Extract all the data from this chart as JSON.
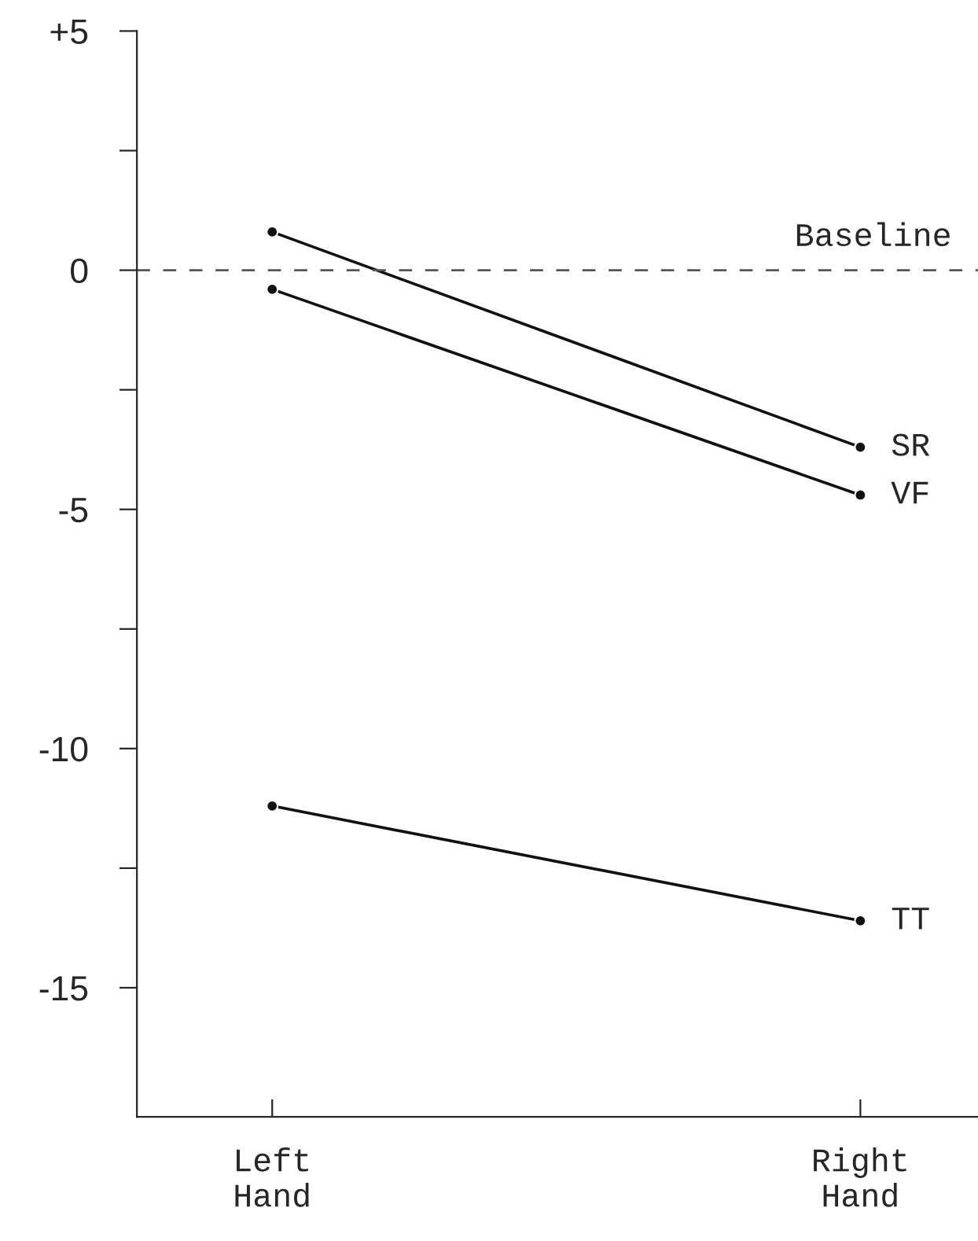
{
  "chart_data": {
    "type": "line",
    "categories": [
      "Left\nHand",
      "Right\nHand"
    ],
    "series": [
      {
        "name": "SR",
        "color": "#111111",
        "values": [
          0.8,
          -3.7
        ]
      },
      {
        "name": "VF",
        "color": "#111111",
        "values": [
          -0.4,
          -4.7
        ]
      },
      {
        "name": "TT",
        "color": "#111111",
        "values": [
          -11.2,
          -13.6
        ]
      }
    ],
    "ylim": [
      -17.7,
      5
    ],
    "yticks": [
      {
        "value": 5,
        "label": "+5"
      },
      {
        "value": 2.5,
        "label": null
      },
      0,
      {
        "value": -2.5,
        "label": null
      },
      -5,
      {
        "value": -7.5,
        "label": null
      },
      -10,
      {
        "value": -12.5,
        "label": null
      },
      -15
    ],
    "ref_lines": [
      {
        "axis": "y",
        "value": 0,
        "label": "Baseline",
        "line_style": "dashed",
        "color": "#555555"
      }
    ],
    "marker": "circle",
    "line_style": "solid",
    "grid": false,
    "legend": false
  }
}
